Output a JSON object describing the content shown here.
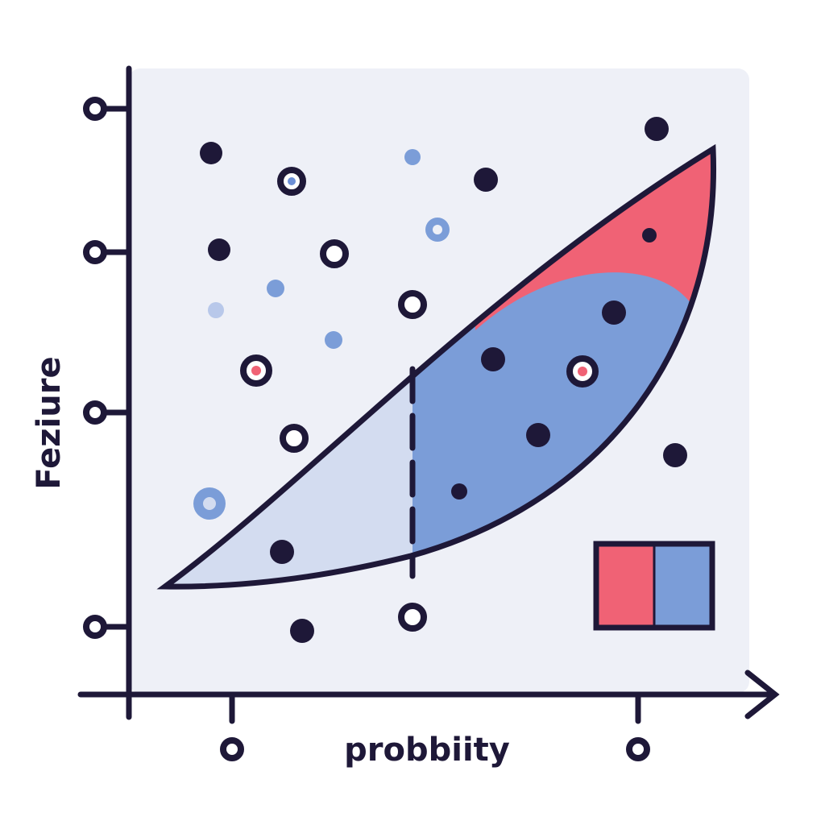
{
  "axis_labels": {
    "x": "probbiity",
    "y": "Feziure"
  }
}
